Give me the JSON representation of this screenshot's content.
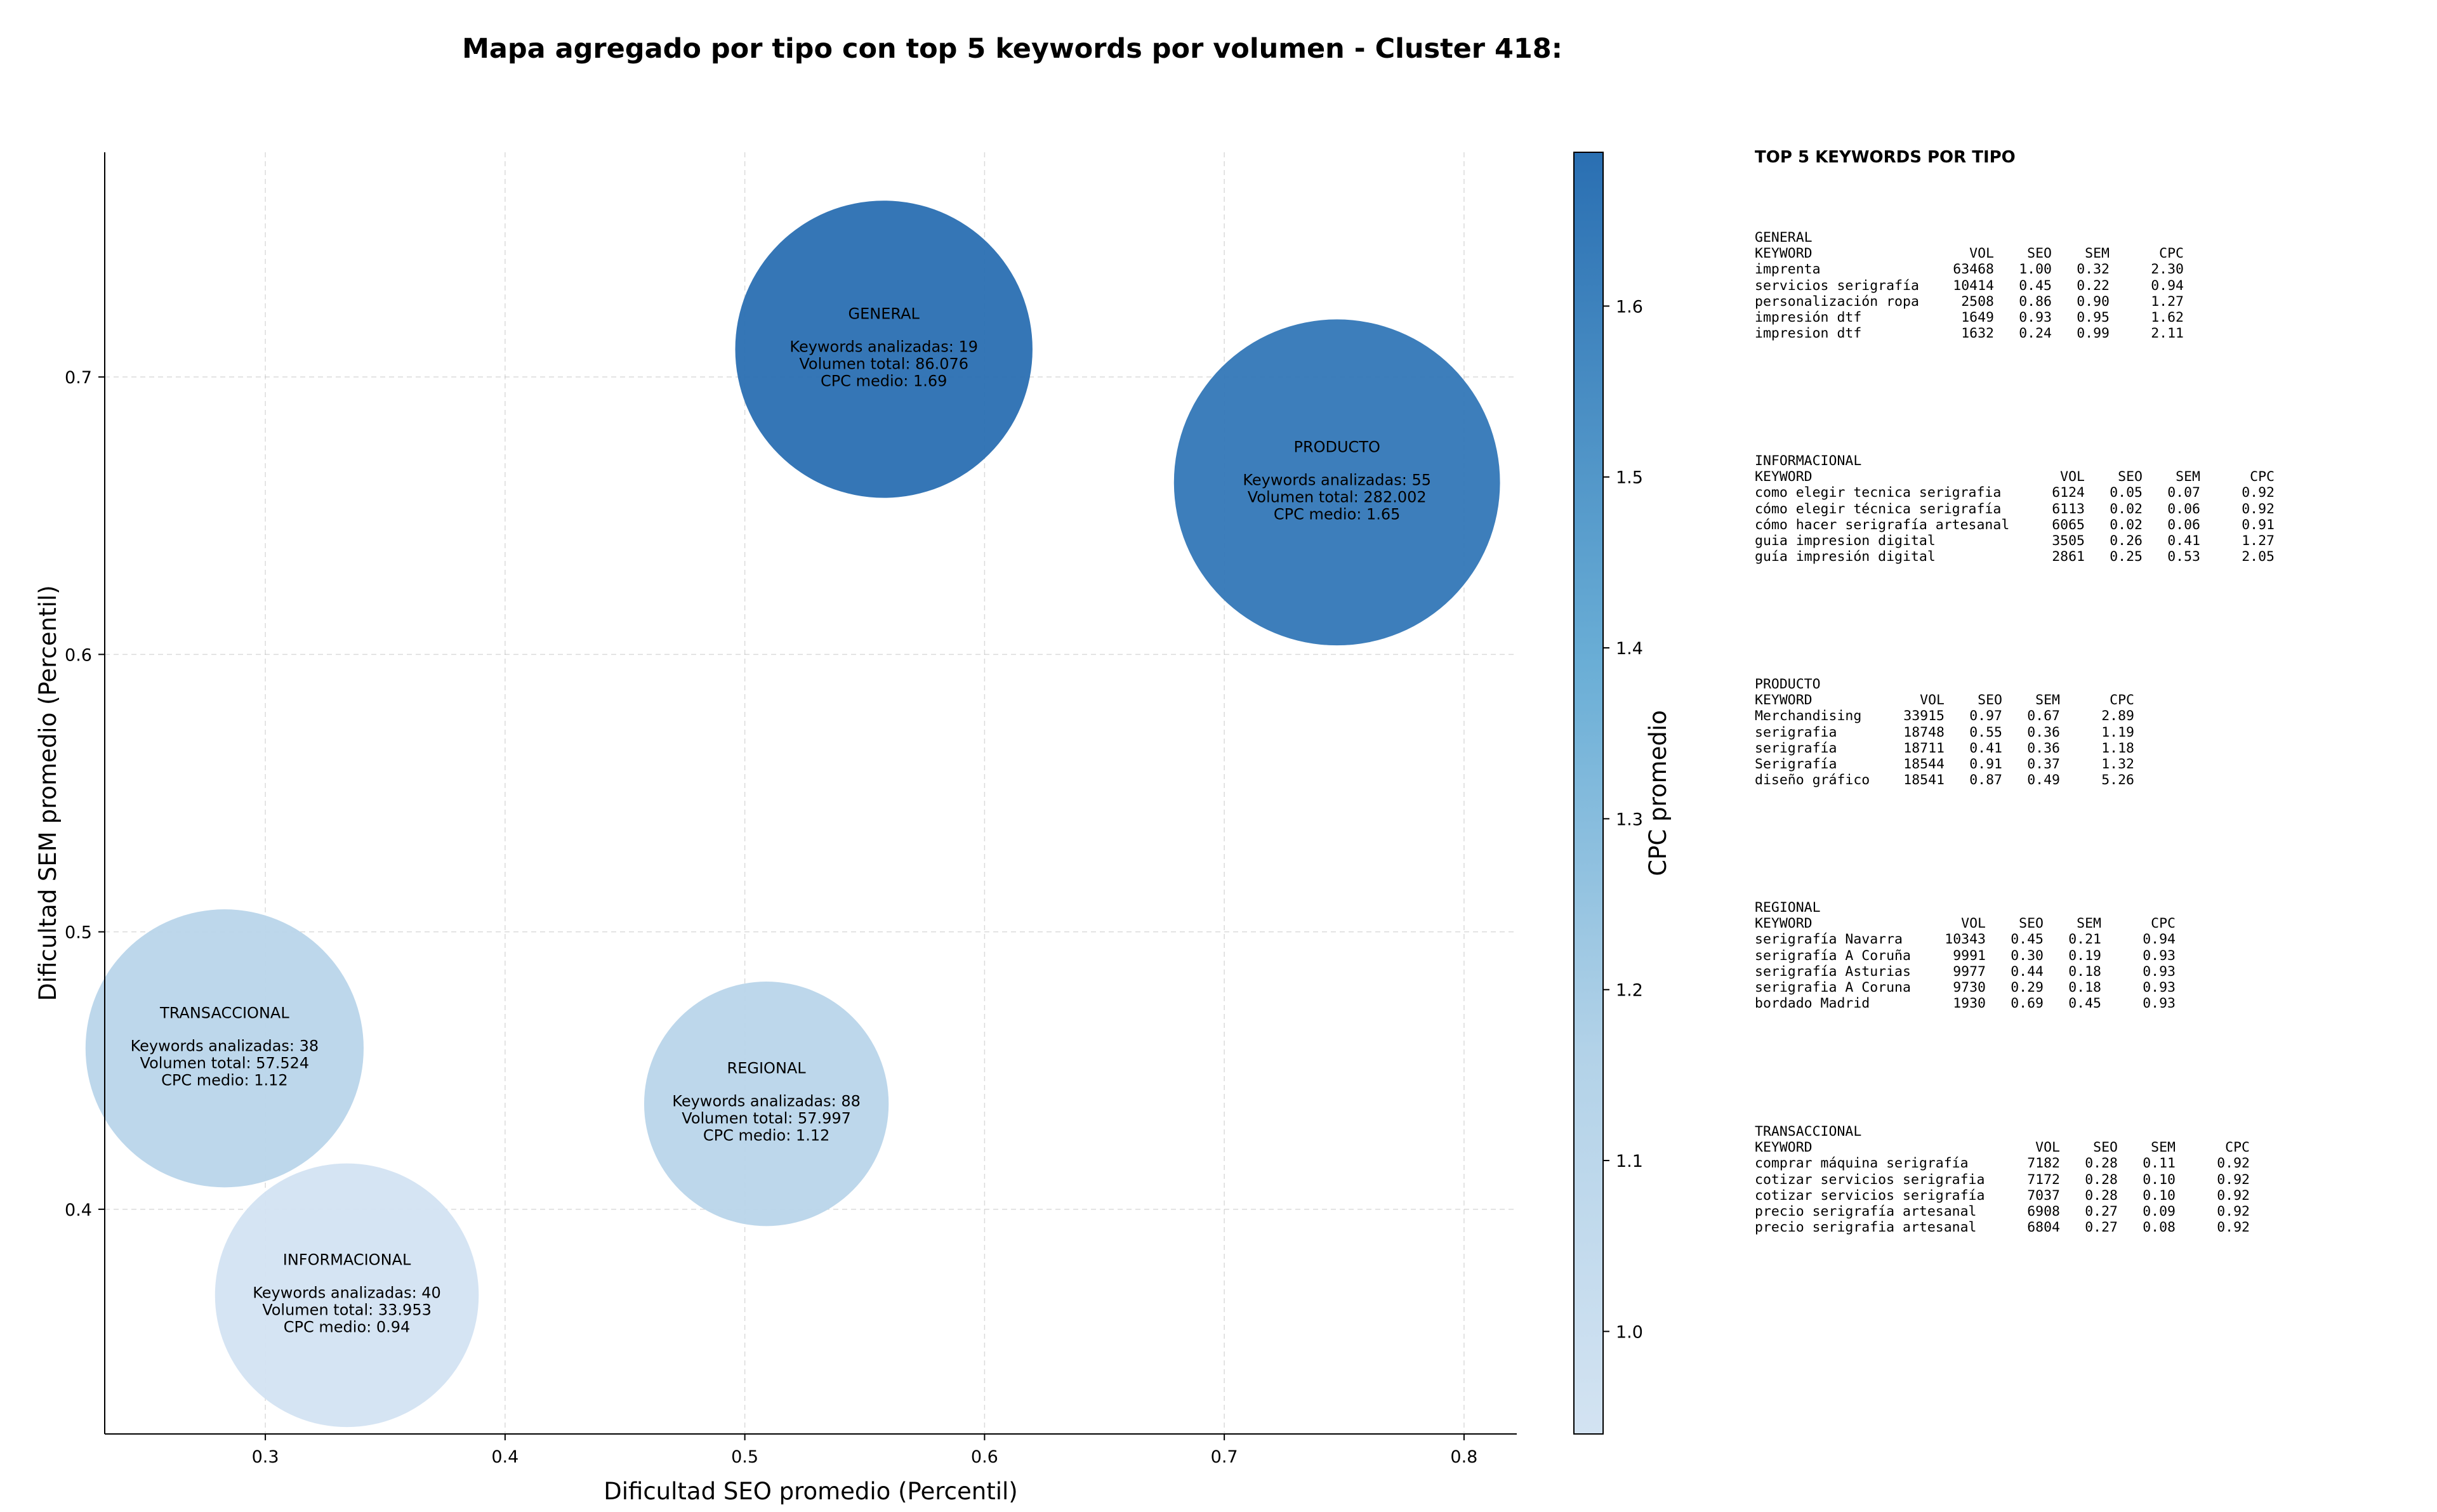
{
  "title": "Mapa agregado por tipo con top 5 keywords por volumen - Cluster 418:",
  "chart_data": {
    "type": "scatter",
    "xlabel": "Dificultad SEO promedio (Percentil)",
    "ylabel": "Dificultad SEM promedio (Percentil)",
    "xlim": [
      0.233,
      0.822
    ],
    "ylim": [
      0.319,
      0.781
    ],
    "xticks": [
      "0.3",
      "0.4",
      "0.5",
      "0.6",
      "0.7",
      "0.8"
    ],
    "yticks": [
      "0.4",
      "0.5",
      "0.6",
      "0.7"
    ],
    "grid": true,
    "colorbar": {
      "label": "CPC promedio",
      "min": 0.94,
      "max": 1.69,
      "ticks": [
        "1.0",
        "1.1",
        "1.2",
        "1.3",
        "1.4",
        "1.5",
        "1.6"
      ],
      "color_low": "#d3e3f2",
      "color_high": "#2a6fb2"
    },
    "bubble_lines": {
      "keywords_prefix": "Keywords analizadas: ",
      "volume_prefix": "Volumen total: ",
      "cpc_prefix": "CPC medio: "
    },
    "bubbles": [
      {
        "name": "GENERAL",
        "x": 0.558,
        "y": 0.71,
        "keywords": 19,
        "volume": "86.076",
        "cpc": 1.69,
        "cpc_label": "1.69",
        "r": 62
      },
      {
        "name": "PRODUCTO",
        "x": 0.747,
        "y": 0.662,
        "keywords": 55,
        "volume": "282.002",
        "cpc": 1.65,
        "cpc_label": "1.65",
        "r": 68
      },
      {
        "name": "TRANSACCIONAL",
        "x": 0.283,
        "y": 0.458,
        "keywords": 38,
        "volume": "57.524",
        "cpc": 1.12,
        "cpc_label": "1.12",
        "r": 58
      },
      {
        "name": "REGIONAL",
        "x": 0.509,
        "y": 0.438,
        "keywords": 88,
        "volume": "57.997",
        "cpc": 1.12,
        "cpc_label": "1.12",
        "r": 51
      },
      {
        "name": "INFORMACIONAL",
        "x": 0.334,
        "y": 0.369,
        "keywords": 40,
        "volume": "33.953",
        "cpc": 0.94,
        "cpc_label": "0.94",
        "r": 55
      }
    ]
  },
  "side_panel": {
    "title": "TOP 5 KEYWORDS POR TIPO",
    "columns": [
      "KEYWORD",
      "VOL",
      "SEO",
      "SEM",
      "CPC"
    ],
    "groups": [
      {
        "name": "GENERAL",
        "rows": [
          [
            "imprenta",
            "63468",
            "1.00",
            "0.32",
            "2.30"
          ],
          [
            "servicios serigrafía",
            "10414",
            "0.45",
            "0.22",
            "0.94"
          ],
          [
            "personalización ropa",
            "2508",
            "0.86",
            "0.90",
            "1.27"
          ],
          [
            "impresión dtf",
            "1649",
            "0.93",
            "0.95",
            "1.62"
          ],
          [
            "impresion dtf",
            "1632",
            "0.24",
            "0.99",
            "2.11"
          ]
        ]
      },
      {
        "name": "INFORMACIONAL",
        "rows": [
          [
            "como elegir tecnica serigrafia",
            "6124",
            "0.05",
            "0.07",
            "0.92"
          ],
          [
            "cómo elegir técnica serigrafía",
            "6113",
            "0.02",
            "0.06",
            "0.92"
          ],
          [
            "cómo hacer serigrafía artesanal",
            "6065",
            "0.02",
            "0.06",
            "0.91"
          ],
          [
            "guia impresion digital",
            "3505",
            "0.26",
            "0.41",
            "1.27"
          ],
          [
            "guía impresión digital",
            "2861",
            "0.25",
            "0.53",
            "2.05"
          ]
        ]
      },
      {
        "name": "PRODUCTO",
        "rows": [
          [
            "Merchandising",
            "33915",
            "0.97",
            "0.67",
            "2.89"
          ],
          [
            "serigrafia",
            "18748",
            "0.55",
            "0.36",
            "1.19"
          ],
          [
            "serigrafía",
            "18711",
            "0.41",
            "0.36",
            "1.18"
          ],
          [
            "Serigrafía",
            "18544",
            "0.91",
            "0.37",
            "1.32"
          ],
          [
            "diseño gráfico",
            "18541",
            "0.87",
            "0.49",
            "5.26"
          ]
        ]
      },
      {
        "name": "REGIONAL",
        "rows": [
          [
            "serigrafía Navarra",
            "10343",
            "0.45",
            "0.21",
            "0.94"
          ],
          [
            "serigrafía A Coruña",
            "9991",
            "0.30",
            "0.19",
            "0.93"
          ],
          [
            "serigrafía Asturias",
            "9977",
            "0.44",
            "0.18",
            "0.93"
          ],
          [
            "serigrafia A Coruna",
            "9730",
            "0.29",
            "0.18",
            "0.93"
          ],
          [
            "bordado Madrid",
            "1930",
            "0.69",
            "0.45",
            "0.93"
          ]
        ]
      },
      {
        "name": "TRANSACCIONAL",
        "rows": [
          [
            "comprar máquina serigrafía",
            "7182",
            "0.28",
            "0.11",
            "0.92"
          ],
          [
            "cotizar servicios serigrafia",
            "7172",
            "0.28",
            "0.10",
            "0.92"
          ],
          [
            "cotizar servicios serigrafía",
            "7037",
            "0.28",
            "0.10",
            "0.92"
          ],
          [
            "precio serigrafía artesanal",
            "6908",
            "0.27",
            "0.09",
            "0.92"
          ],
          [
            "precio serigrafia artesanal",
            "6804",
            "0.27",
            "0.08",
            "0.92"
          ]
        ]
      }
    ]
  }
}
